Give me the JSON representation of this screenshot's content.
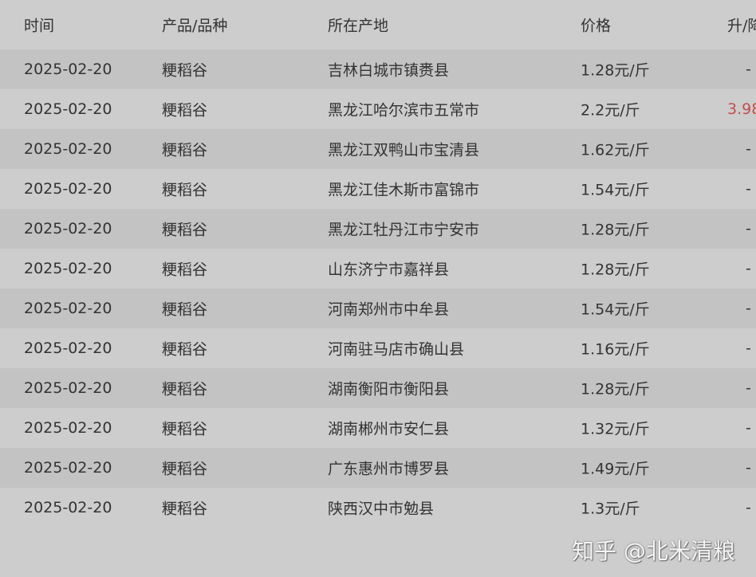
{
  "table": {
    "headers": [
      "时间",
      "产品/品种",
      "所在产地",
      "价格",
      "升/降"
    ],
    "rows": [
      {
        "date": "2025-02-20",
        "product": "粳稻谷",
        "origin": "吉林白城市镇赉县",
        "price": "1.28元/斤",
        "change": "-"
      },
      {
        "date": "2025-02-20",
        "product": "粳稻谷",
        "origin": "黑龙江哈尔滨市五常市",
        "price": "2.2元/斤",
        "change": "3.98"
      },
      {
        "date": "2025-02-20",
        "product": "粳稻谷",
        "origin": "黑龙江双鸭山市宝清县",
        "price": "1.62元/斤",
        "change": "-"
      },
      {
        "date": "2025-02-20",
        "product": "粳稻谷",
        "origin": "黑龙江佳木斯市富锦市",
        "price": "1.54元/斤",
        "change": "-"
      },
      {
        "date": "2025-02-20",
        "product": "粳稻谷",
        "origin": "黑龙江牡丹江市宁安市",
        "price": "1.28元/斤",
        "change": "-"
      },
      {
        "date": "2025-02-20",
        "product": "粳稻谷",
        "origin": "山东济宁市嘉祥县",
        "price": "1.28元/斤",
        "change": "-"
      },
      {
        "date": "2025-02-20",
        "product": "粳稻谷",
        "origin": "河南郑州市中牟县",
        "price": "1.54元/斤",
        "change": "-"
      },
      {
        "date": "2025-02-20",
        "product": "粳稻谷",
        "origin": "河南驻马店市确山县",
        "price": "1.16元/斤",
        "change": "-"
      },
      {
        "date": "2025-02-20",
        "product": "粳稻谷",
        "origin": "湖南衡阳市衡阳县",
        "price": "1.28元/斤",
        "change": "-"
      },
      {
        "date": "2025-02-20",
        "product": "粳稻谷",
        "origin": "湖南郴州市安仁县",
        "price": "1.32元/斤",
        "change": "-"
      },
      {
        "date": "2025-02-20",
        "product": "粳稻谷",
        "origin": "广东惠州市博罗县",
        "price": "1.49元/斤",
        "change": "-"
      },
      {
        "date": "2025-02-20",
        "product": "粳稻谷",
        "origin": "陕西汉中市勉县",
        "price": "1.3元/斤",
        "change": "-"
      }
    ]
  },
  "watermark": "知乎 @北米清粮",
  "colors": {
    "up": "#c0504d"
  }
}
